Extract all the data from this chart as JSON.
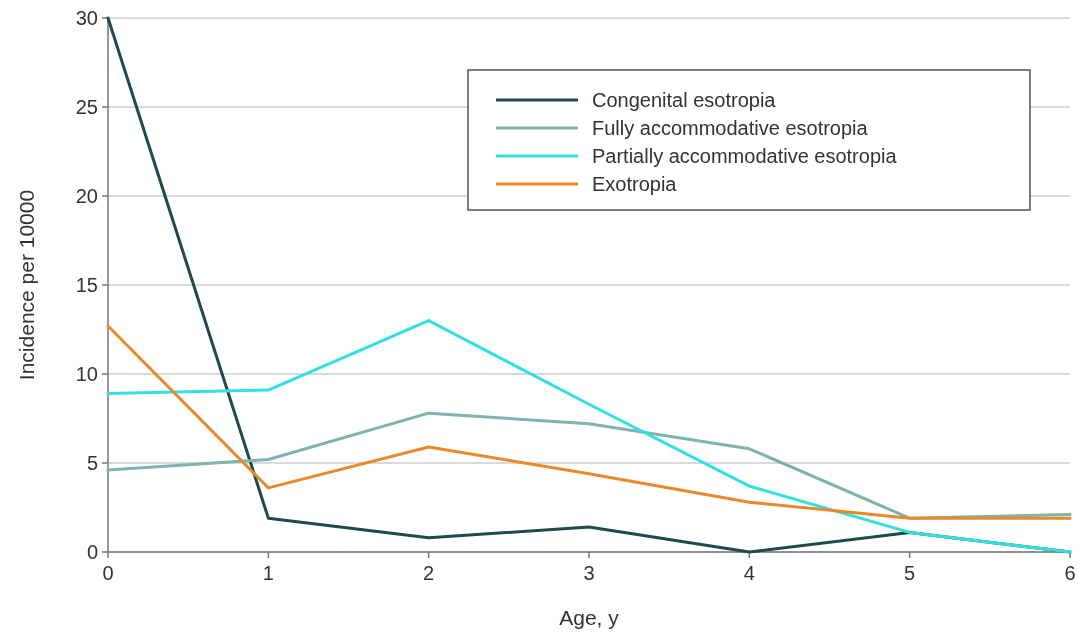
{
  "chart_data": {
    "type": "line",
    "xlabel": "Age, y",
    "ylabel": "Incidence per 10000",
    "x": [
      0,
      1,
      2,
      3,
      4,
      5,
      6
    ],
    "xlim": [
      0,
      6
    ],
    "xticks": [
      0,
      1,
      2,
      3,
      4,
      5,
      6
    ],
    "ylim": [
      0,
      30
    ],
    "yticks": [
      0,
      5,
      10,
      15,
      20,
      25,
      30
    ],
    "grid": "y",
    "legend": "top right",
    "series": [
      {
        "name": "Congenital esotropia",
        "color": "#1f4a4c",
        "values": [
          30,
          1.9,
          0.8,
          1.4,
          0,
          1.1,
          0
        ]
      },
      {
        "name": "Fully accommodative esotropia",
        "color": "#80b2ae",
        "values": [
          4.6,
          5.2,
          7.8,
          7.2,
          5.8,
          1.9,
          2.1
        ]
      },
      {
        "name": "Partially accommodative esotropia",
        "color": "#33dfe0",
        "values": [
          8.9,
          9.1,
          13.0,
          8.3,
          3.7,
          1.1,
          0
        ]
      },
      {
        "name": "Exotropia",
        "color": "#e8892b",
        "values": [
          12.7,
          3.6,
          5.9,
          4.4,
          2.8,
          1.9,
          1.9
        ]
      }
    ]
  }
}
